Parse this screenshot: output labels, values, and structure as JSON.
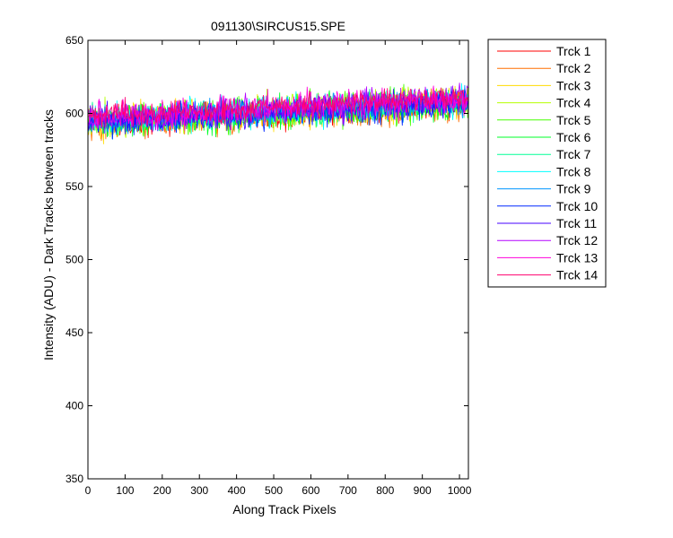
{
  "chart_data": {
    "type": "line",
    "title": "091130\\SIRCUS15.SPE",
    "xlabel": "Along Track Pixels",
    "ylabel": "Intensity (ADU) - Dark Tracks between tracks",
    "xlim": [
      0,
      1024
    ],
    "ylim": [
      350,
      650
    ],
    "xticks": [
      0,
      100,
      200,
      300,
      400,
      500,
      600,
      700,
      800,
      900,
      1000
    ],
    "yticks": [
      350,
      400,
      450,
      500,
      550,
      600,
      650
    ],
    "grid": false,
    "legend_position": "outside-right",
    "series": [
      {
        "name": "Trck 1",
        "color": "#ff0000",
        "start": 593,
        "end": 607,
        "noise": 8
      },
      {
        "name": "Trck 2",
        "color": "#ff6e00",
        "start": 592,
        "end": 606,
        "noise": 9
      },
      {
        "name": "Trck 3",
        "color": "#ffdc00",
        "start": 594,
        "end": 607,
        "noise": 9
      },
      {
        "name": "Trck 4",
        "color": "#b4ff00",
        "start": 596,
        "end": 608,
        "noise": 9
      },
      {
        "name": "Trck 5",
        "color": "#46ff00",
        "start": 595,
        "end": 607,
        "noise": 9
      },
      {
        "name": "Trck 6",
        "color": "#00ff28",
        "start": 594,
        "end": 606,
        "noise": 9
      },
      {
        "name": "Trck 7",
        "color": "#00ff96",
        "start": 595,
        "end": 607,
        "noise": 8
      },
      {
        "name": "Trck 8",
        "color": "#00ffff",
        "start": 596,
        "end": 608,
        "noise": 9
      },
      {
        "name": "Trck 9",
        "color": "#0096ff",
        "start": 594,
        "end": 608,
        "noise": 8
      },
      {
        "name": "Trck 10",
        "color": "#0028ff",
        "start": 593,
        "end": 607,
        "noise": 8
      },
      {
        "name": "Trck 11",
        "color": "#4600ff",
        "start": 595,
        "end": 609,
        "noise": 8
      },
      {
        "name": "Trck 12",
        "color": "#b400ff",
        "start": 596,
        "end": 610,
        "noise": 8
      },
      {
        "name": "Trck 13",
        "color": "#ff00dc",
        "start": 597,
        "end": 611,
        "noise": 8
      },
      {
        "name": "Trck 14",
        "color": "#ff006e",
        "start": 598,
        "end": 611,
        "noise": 7
      }
    ]
  }
}
